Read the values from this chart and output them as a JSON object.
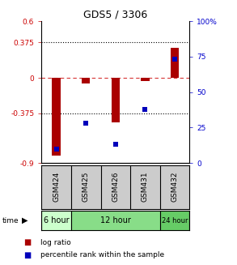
{
  "title": "GDS5 / 3306",
  "categories": [
    "GSM424",
    "GSM425",
    "GSM426",
    "GSM431",
    "GSM432"
  ],
  "log_ratio": [
    -0.82,
    -0.055,
    -0.47,
    -0.035,
    0.32
  ],
  "percentile_rank": [
    10,
    28,
    13,
    38,
    73
  ],
  "ylim_left": [
    -0.9,
    0.6
  ],
  "ylim_right": [
    0,
    100
  ],
  "yticks_left": [
    -0.9,
    -0.375,
    0,
    0.375,
    0.6
  ],
  "yticks_right": [
    0,
    25,
    50,
    75,
    100
  ],
  "ytick_labels_left": [
    "-0.9",
    "-0.375",
    "0",
    "0.375",
    "0.6"
  ],
  "ytick_labels_right": [
    "0",
    "25",
    "50",
    "75",
    "100%"
  ],
  "hlines_dotted": [
    0.375,
    -0.375
  ],
  "hline_dashed": 0,
  "bar_color": "#aa0000",
  "dot_color": "#0000bb",
  "time_groups": [
    {
      "label": "6 hour",
      "start": 0,
      "end": 1,
      "color": "#ccffcc"
    },
    {
      "label": "12 hour",
      "start": 1,
      "end": 4,
      "color": "#88dd88"
    },
    {
      "label": "24 hour",
      "start": 4,
      "end": 5,
      "color": "#66cc66"
    }
  ],
  "legend_bar_label": "log ratio",
  "legend_dot_label": "percentile rank within the sample",
  "time_label": "time",
  "gsm_bg_color": "#cccccc",
  "background_color": "#ffffff"
}
